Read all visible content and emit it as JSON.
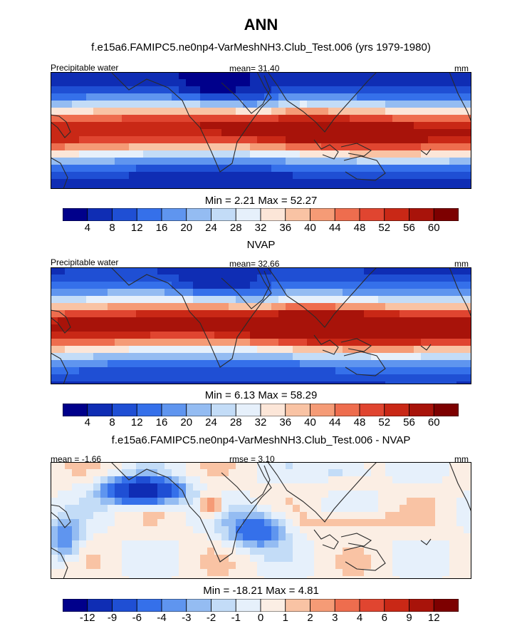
{
  "title": "ANN",
  "colors": {
    "absolute": [
      "#00008b",
      "#0f2db4",
      "#1f4fd4",
      "#3570ea",
      "#5f95ef",
      "#94bcf2",
      "#c3dcf7",
      "#e6f0fb",
      "#fce6d8",
      "#f9c3a4",
      "#f59b76",
      "#ee6d4e",
      "#e04530",
      "#c92816",
      "#a8130a",
      "#7d0000"
    ],
    "difference": [
      "#00008b",
      "#0f2db4",
      "#1f4fd4",
      "#3570ea",
      "#5f95ef",
      "#94bcf2",
      "#c3dcf7",
      "#e6f0fb",
      "#fbeee4",
      "#f9c3a4",
      "#f59b76",
      "#ee6d4e",
      "#e04530",
      "#c92816",
      "#a8130a",
      "#7d0000"
    ],
    "land": "#2a2a2a"
  },
  "panels": [
    {
      "title": "f.e15a6.FAMIPC5.ne0np4-VarMeshNH3.Club_Test.006 (yrs 1979-1980)",
      "left_label": "Precipitable water",
      "center_label": "mean=  31.40",
      "right_label": "mm",
      "minmax": "Min =   2.21 Max =  52.27"
    },
    {
      "title": "NVAP",
      "left_label": "Precipitable water",
      "center_label": "mean=  32.66",
      "right_label": "mm",
      "minmax": "Min =   6.13 Max =  58.29"
    },
    {
      "title": "f.e15a6.FAMIPC5.ne0np4-VarMeshNH3.Club_Test.006 - NVAP",
      "left_label": "mean =  -1.66",
      "center_label": "rmse =   3.10",
      "right_label": "mm",
      "minmax": "Min = -18.21 Max =   4.81"
    }
  ],
  "chart_data": [
    {
      "type": "heatmap",
      "title": "f.e15a6.FAMIPC5.ne0np4-VarMeshNH3.Club_Test.006 (yrs 1979-1980)",
      "variable": "Precipitable water",
      "units": "mm",
      "mean": 31.4,
      "min": 2.21,
      "max": 52.27,
      "levels": [
        4,
        8,
        12,
        16,
        20,
        24,
        28,
        32,
        36,
        40,
        44,
        48,
        52,
        56,
        60
      ],
      "tick_labels": [
        "4",
        "8",
        "12",
        "16",
        "20",
        "24",
        "28",
        "32",
        "36",
        "40",
        "44",
        "48",
        "52",
        "56",
        "60"
      ]
    },
    {
      "type": "heatmap",
      "title": "NVAP",
      "variable": "Precipitable water",
      "units": "mm",
      "mean": 32.66,
      "min": 6.13,
      "max": 58.29,
      "levels": [
        4,
        8,
        12,
        16,
        20,
        24,
        28,
        32,
        36,
        40,
        44,
        48,
        52,
        56,
        60
      ],
      "tick_labels": [
        "4",
        "8",
        "12",
        "16",
        "20",
        "24",
        "28",
        "32",
        "36",
        "40",
        "44",
        "48",
        "52",
        "56",
        "60"
      ]
    },
    {
      "type": "heatmap",
      "title": "f.e15a6.FAMIPC5.ne0np4-VarMeshNH3.Club_Test.006 - NVAP",
      "units": "mm",
      "mean": -1.66,
      "rmse": 3.1,
      "min": -18.21,
      "max": 4.81,
      "levels": [
        -12,
        -9,
        -6,
        -4,
        -3,
        -2,
        -1,
        0,
        1,
        2,
        3,
        4,
        6,
        9,
        12
      ],
      "tick_labels": [
        "-12",
        "-9",
        "-6",
        "-4",
        "-3",
        "-2",
        "-1",
        "0",
        "1",
        "2",
        "3",
        "4",
        "6",
        "9",
        "12"
      ]
    }
  ]
}
